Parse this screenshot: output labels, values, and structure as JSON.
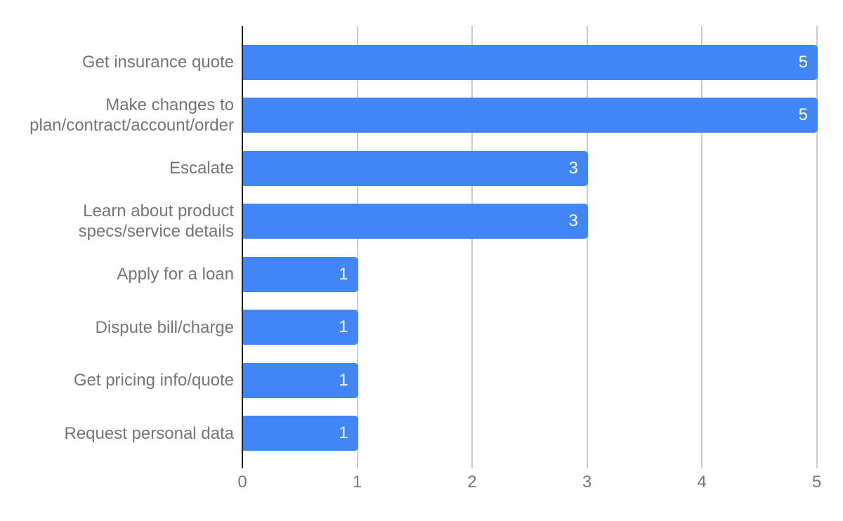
{
  "chart_data": {
    "type": "bar",
    "orientation": "horizontal",
    "title": "",
    "xlabel": "",
    "ylabel": "",
    "categories": [
      "Get insurance quote",
      "Make changes to\nplan/contract/account/order",
      "Escalate",
      "Learn about product\nspecs/service details",
      "Apply for a loan",
      "Dispute bill/charge",
      "Get pricing info/quote",
      "Request personal data"
    ],
    "values": [
      5,
      5,
      3,
      3,
      1,
      1,
      1,
      1
    ],
    "value_labels": [
      "5",
      "5",
      "3",
      "3",
      "1",
      "1",
      "1",
      "1"
    ],
    "xlim": [
      0,
      5
    ],
    "x_ticks": [
      "0",
      "1",
      "2",
      "3",
      "4",
      "5"
    ],
    "grid": true,
    "legend": "none",
    "colors": {
      "bar": "#4285F4",
      "value_label": "#ffffff",
      "category_label": "#757575",
      "tick_label": "#757575",
      "gridline": "#cccccc",
      "axis_line": "#1b1b1b",
      "background": "#ffffff"
    }
  }
}
